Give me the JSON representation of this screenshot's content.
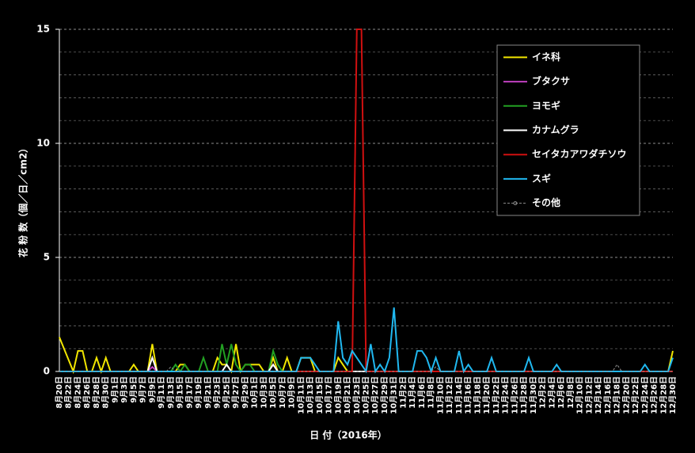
{
  "chart_data": {
    "type": "line",
    "y_label": "花 粉 数（個／日／cm2）",
    "x_label": "日 付（2016年）",
    "categories": [
      "8月20日",
      null,
      "8月22日",
      null,
      "8月24日",
      null,
      "8月26日",
      null,
      "8月28日",
      null,
      "8月30日",
      null,
      "9月1日",
      null,
      "9月3日",
      null,
      "9月5日",
      null,
      "9月7日",
      null,
      "9月9日",
      null,
      "9月11日",
      null,
      "9月13日",
      null,
      "9月15日",
      null,
      "9月17日",
      null,
      "9月19日",
      null,
      "9月21日",
      null,
      "9月23日",
      null,
      "9月25日",
      null,
      "9月27日",
      null,
      "9月29日",
      null,
      "10月1日",
      null,
      "10月3日",
      null,
      "10月5日",
      null,
      "10月7日",
      null,
      "10月9日",
      null,
      "10月11日",
      null,
      "10月13日",
      null,
      "10月15日",
      null,
      "10月17日",
      null,
      "10月19日",
      null,
      "10月21日",
      null,
      "10月23日",
      null,
      "10月25日",
      null,
      "10月27日",
      null,
      "10月29日",
      null,
      "10月31日",
      null,
      "11月2日",
      null,
      "11月4日",
      null,
      "11月6日",
      null,
      "11月8日",
      null,
      "11月10日",
      null,
      "11月12日",
      null,
      "11月14日",
      null,
      "11月16日",
      null,
      "11月18日",
      null,
      "11月20日",
      null,
      "11月22日",
      null,
      "11月24日",
      null,
      "11月26日",
      null,
      "11月28日",
      null,
      "11月30日",
      null,
      "12月2日",
      null,
      "12月4日",
      null,
      "12月6日",
      null,
      "12月8日",
      null,
      "12月10日",
      null,
      "12月12日",
      null,
      "12月14日",
      null,
      "12月16日",
      null,
      "12月18日",
      null,
      "12月20日",
      null,
      "12月22日",
      null,
      "12月24日",
      null,
      "12月26日",
      null,
      "12月28日",
      null,
      "12月30日"
    ],
    "series": [
      {
        "name": "イネ科",
        "color": "#f2e600",
        "values": [
          1.5,
          1,
          0.5,
          0,
          0.9,
          0.9,
          0,
          0,
          0.6,
          0,
          0.6,
          0,
          0,
          0,
          0,
          0,
          0.3,
          0,
          0,
          0,
          1.2,
          0,
          0,
          0,
          0,
          0,
          0.3,
          0.3,
          0,
          0,
          0,
          0,
          0,
          0,
          0.6,
          0.3,
          0.3,
          0,
          1.2,
          0,
          0.3,
          0.3,
          0.3,
          0.3,
          0,
          0,
          0.6,
          0,
          0,
          0.6,
          0,
          0,
          0.6,
          0.6,
          0.6,
          0,
          0,
          0,
          0,
          0,
          0.6,
          0.3,
          0,
          0,
          0,
          0,
          0,
          0,
          0,
          0,
          0,
          0,
          0,
          0,
          0,
          0,
          0,
          0,
          0,
          0,
          0,
          0,
          0,
          0,
          0,
          0,
          0,
          0,
          0,
          0,
          0,
          0,
          0,
          0,
          0,
          0,
          0,
          0,
          0,
          0,
          0,
          0,
          0,
          0,
          0,
          0,
          0,
          0,
          0,
          0,
          0,
          0,
          0,
          0,
          0,
          0,
          0,
          0,
          0,
          0,
          0,
          0,
          0,
          0,
          0,
          0,
          0,
          0,
          0,
          0,
          0,
          0,
          0.9
        ]
      },
      {
        "name": "ブタクサ",
        "color": "#c040c0",
        "values": [
          0,
          0,
          0,
          0,
          0,
          0,
          0,
          0,
          0,
          0,
          0,
          0,
          0,
          0,
          0,
          0,
          0,
          0,
          0,
          0,
          0.2,
          0,
          0,
          0,
          0,
          0,
          0,
          0,
          0,
          0,
          0,
          0,
          0,
          0,
          0,
          0,
          0,
          0,
          0,
          0,
          0,
          0,
          0,
          0,
          0,
          0,
          0.3,
          0,
          0,
          0,
          0,
          0,
          0,
          0,
          0,
          0,
          0,
          0,
          0,
          0,
          0,
          0,
          0,
          0,
          0,
          0,
          0,
          0,
          0,
          0,
          0,
          0,
          0,
          0,
          0,
          0,
          0,
          0,
          0,
          0,
          0,
          0,
          0,
          0,
          0,
          0,
          0,
          0,
          0,
          0,
          0,
          0,
          0,
          0,
          0,
          0,
          0,
          0,
          0,
          0,
          0,
          0,
          0,
          0,
          0,
          0,
          0,
          0,
          0,
          0,
          0,
          0,
          0,
          0,
          0,
          0,
          0,
          0,
          0,
          0,
          0,
          0,
          0,
          0,
          0,
          0,
          0,
          0,
          0,
          0,
          0,
          0,
          0
        ]
      },
      {
        "name": "ヨモギ",
        "color": "#22a022",
        "values": [
          0,
          0,
          0,
          0,
          0,
          0,
          0,
          0,
          0,
          0,
          0,
          0,
          0,
          0,
          0,
          0,
          0,
          0,
          0,
          0,
          0,
          0,
          0,
          0,
          0,
          0.3,
          0,
          0.3,
          0,
          0,
          0,
          0.6,
          0,
          0,
          0,
          1.2,
          0.3,
          1.2,
          0.3,
          0,
          0.3,
          0.3,
          0,
          0,
          0,
          0,
          0.9,
          0.3,
          0,
          0,
          0,
          0,
          0,
          0,
          0,
          0,
          0,
          0,
          0,
          0,
          0,
          0,
          0,
          0,
          0,
          0,
          0,
          0,
          0,
          0,
          0,
          0,
          0,
          0,
          0,
          0,
          0,
          0,
          0,
          0,
          0,
          0,
          0,
          0,
          0,
          0,
          0,
          0,
          0,
          0,
          0,
          0,
          0,
          0,
          0,
          0,
          0,
          0,
          0,
          0,
          0,
          0,
          0,
          0,
          0,
          0,
          0,
          0,
          0,
          0,
          0,
          0,
          0,
          0,
          0,
          0,
          0,
          0,
          0,
          0,
          0,
          0,
          0,
          0,
          0,
          0,
          0,
          0,
          0,
          0,
          0,
          0,
          0
        ]
      },
      {
        "name": "カナムグラ",
        "color": "#ffffff",
        "values": [
          0,
          0,
          0,
          0,
          0,
          0,
          0,
          0,
          0,
          0,
          0,
          0,
          0,
          0,
          0,
          0,
          0,
          0,
          0,
          0,
          0.6,
          0,
          0,
          0,
          0,
          0,
          0,
          0,
          0,
          0,
          0,
          0,
          0,
          0,
          0,
          0,
          0.3,
          0,
          0,
          0,
          0,
          0,
          0,
          0,
          0,
          0,
          0.3,
          0,
          0,
          0,
          0,
          0,
          0,
          0,
          0,
          0,
          0,
          0,
          0,
          0,
          0,
          0,
          0,
          0,
          0,
          0,
          0,
          0,
          0,
          0,
          0,
          0,
          0,
          0,
          0,
          0,
          0,
          0,
          0,
          0,
          0,
          0,
          0,
          0,
          0,
          0,
          0,
          0,
          0,
          0,
          0,
          0,
          0,
          0,
          0,
          0,
          0,
          0,
          0,
          0,
          0,
          0,
          0,
          0,
          0,
          0,
          0,
          0,
          0,
          0,
          0,
          0,
          0,
          0,
          0,
          0,
          0,
          0,
          0,
          0,
          0,
          0,
          0,
          0,
          0,
          0,
          0,
          0,
          0,
          0,
          0,
          0,
          0
        ]
      },
      {
        "name": "セイタカアワダチソウ",
        "color": "#d01010",
        "values": [
          0,
          0,
          0,
          0,
          0,
          0,
          0,
          0,
          0,
          0,
          0,
          0,
          0,
          0,
          0,
          0,
          0,
          0,
          0,
          0,
          0,
          0,
          0,
          0,
          0,
          0,
          0,
          0,
          0,
          0,
          0,
          0,
          0,
          0,
          0,
          0,
          0,
          0,
          0,
          0,
          0,
          0,
          0,
          0,
          0,
          0,
          0,
          0,
          0,
          0,
          0,
          0,
          0,
          0,
          0,
          0,
          0,
          0,
          0,
          0,
          0,
          0,
          0,
          0,
          15,
          15,
          0,
          0,
          0,
          0,
          0,
          0,
          0,
          0,
          0,
          0,
          0,
          0,
          0,
          0,
          0,
          0,
          0,
          0,
          0,
          0,
          0,
          0,
          0,
          0,
          0,
          0,
          0,
          0,
          0,
          0,
          0,
          0,
          0,
          0,
          0,
          0,
          0,
          0,
          0,
          0,
          0,
          0,
          0,
          0,
          0,
          0,
          0,
          0,
          0,
          0,
          0,
          0,
          0,
          0,
          0,
          0,
          0,
          0,
          0,
          0,
          0,
          0,
          0,
          0,
          0,
          0,
          0
        ]
      },
      {
        "name": "スギ",
        "color": "#20b8f0",
        "values": [
          0,
          0,
          0,
          0,
          0,
          0,
          0,
          0,
          0,
          0,
          0,
          0,
          0,
          0,
          0,
          0,
          0,
          0,
          0,
          0,
          0,
          0,
          0,
          0,
          0,
          0,
          0,
          0,
          0,
          0,
          0,
          0,
          0,
          0,
          0,
          0,
          0,
          0,
          0,
          0,
          0,
          0,
          0,
          0,
          0,
          0,
          0,
          0,
          0,
          0,
          0,
          0,
          0.6,
          0.6,
          0.6,
          0.3,
          0,
          0,
          0,
          0,
          2.2,
          0.6,
          0.3,
          0.9,
          0.6,
          0.3,
          0,
          1.2,
          0,
          0.3,
          0,
          0.6,
          2.8,
          0,
          0,
          0,
          0,
          0.9,
          0.9,
          0.6,
          0,
          0.6,
          0,
          0,
          0,
          0,
          0.9,
          0,
          0.3,
          0,
          0,
          0,
          0,
          0.6,
          0,
          0,
          0,
          0,
          0,
          0,
          0,
          0.6,
          0,
          0,
          0,
          0,
          0,
          0.3,
          0,
          0,
          0,
          0,
          0,
          0,
          0,
          0,
          0,
          0,
          0,
          0,
          0,
          0,
          0,
          0,
          0,
          0,
          0.3,
          0,
          0,
          0,
          0,
          0,
          0.6
        ]
      },
      {
        "name": "その他",
        "color": "#909090",
        "dashed": true,
        "marker": "circle",
        "values": [
          0,
          0,
          0,
          0,
          0,
          0,
          0,
          0,
          0,
          0,
          0,
          0,
          0,
          0,
          0,
          0,
          0,
          0,
          0,
          0,
          0,
          0,
          0,
          0,
          0.2,
          0,
          0,
          0,
          0,
          0,
          0,
          0,
          0,
          0,
          0,
          0,
          0,
          0,
          0,
          0,
          0,
          0,
          0,
          0,
          0,
          0,
          0,
          0,
          0,
          0,
          0,
          0,
          0,
          0,
          0,
          0,
          0,
          0,
          0,
          0,
          0,
          0,
          0,
          0,
          0,
          0,
          0,
          0,
          0,
          0,
          0,
          0,
          0,
          0,
          0,
          0,
          0,
          0,
          0,
          0,
          0,
          0.2,
          0,
          0,
          0,
          0,
          0,
          0,
          0,
          0,
          0,
          0,
          0,
          0,
          0,
          0,
          0,
          0,
          0,
          0,
          0,
          0,
          0,
          0,
          0,
          0,
          0,
          0,
          0,
          0,
          0,
          0,
          0,
          0,
          0,
          0,
          0,
          0,
          0,
          0,
          0.3,
          0,
          0,
          0,
          0,
          0,
          0,
          0,
          0,
          0,
          0,
          0,
          0
        ]
      }
    ],
    "ylim": [
      0,
      15
    ],
    "yticks": [
      0,
      5,
      10,
      15
    ],
    "minor_yticks": [
      1,
      2,
      3,
      4,
      6,
      7,
      8,
      9,
      11,
      12,
      13,
      14
    ],
    "grid": true,
    "legend": "upper right"
  }
}
